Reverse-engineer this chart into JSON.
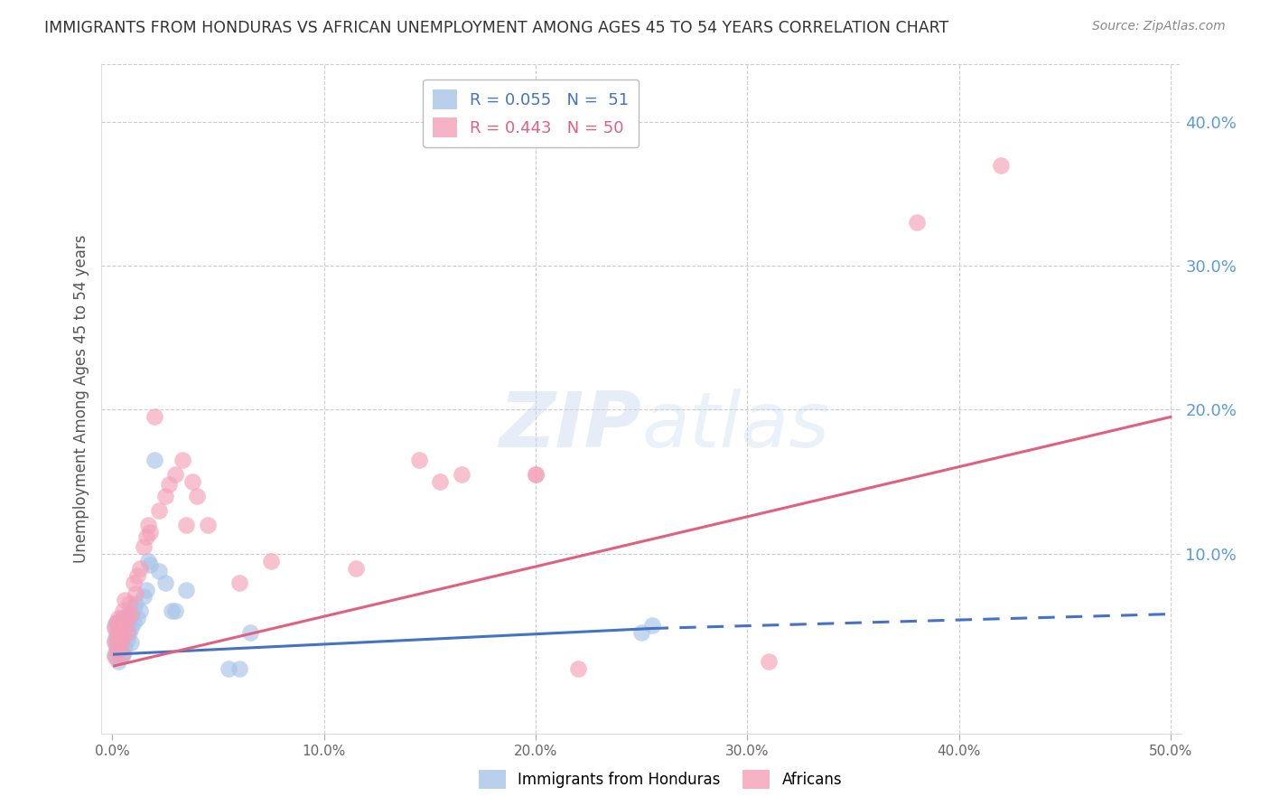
{
  "title": "IMMIGRANTS FROM HONDURAS VS AFRICAN UNEMPLOYMENT AMONG AGES 45 TO 54 YEARS CORRELATION CHART",
  "source": "Source: ZipAtlas.com",
  "ylabel": "Unemployment Among Ages 45 to 54 years",
  "xlim": [
    -0.005,
    0.505
  ],
  "ylim": [
    -0.025,
    0.44
  ],
  "xticks": [
    0.0,
    0.1,
    0.2,
    0.3,
    0.4,
    0.5
  ],
  "yticks_right": [
    0.1,
    0.2,
    0.3,
    0.4
  ],
  "xtick_labels": [
    "0.0%",
    "10.0%",
    "20.0%",
    "30.0%",
    "40.0%",
    "50.0%"
  ],
  "ytick_labels_right": [
    "10.0%",
    "20.0%",
    "30.0%",
    "40.0%"
  ],
  "series1_name": "Immigrants from Honduras",
  "series1_color": "#a8c4e8",
  "series2_name": "Africans",
  "series2_color": "#f4a0b8",
  "trend1_color": "#4472c4",
  "trend2_color": "#e06080",
  "background_color": "#ffffff",
  "grid_color": "#cccccc",
  "title_color": "#333333",
  "axis_label_color": "#555555",
  "right_axis_color": "#5b9bd5",
  "legend_label1": "R = 0.055   N =  51",
  "legend_label2": "R = 0.443   N = 50",
  "legend_color1": "#4472c4",
  "legend_color2": "#e06080",
  "watermark_text": "ZIPatlas",
  "trend1_x_start": 0.001,
  "trend1_x_solid_end": 0.255,
  "trend1_x_end": 0.5,
  "trend1_y_start": 0.03,
  "trend1_y_solid_end": 0.048,
  "trend1_y_end": 0.058,
  "trend2_x_start": 0.001,
  "trend2_x_end": 0.5,
  "trend2_y_start": 0.022,
  "trend2_y_end": 0.195,
  "series1_x": [
    0.001,
    0.001,
    0.001,
    0.002,
    0.002,
    0.002,
    0.002,
    0.002,
    0.003,
    0.003,
    0.003,
    0.003,
    0.004,
    0.004,
    0.004,
    0.004,
    0.004,
    0.005,
    0.005,
    0.005,
    0.005,
    0.006,
    0.006,
    0.006,
    0.007,
    0.007,
    0.007,
    0.008,
    0.008,
    0.009,
    0.009,
    0.01,
    0.01,
    0.011,
    0.012,
    0.013,
    0.015,
    0.016,
    0.017,
    0.018,
    0.02,
    0.022,
    0.025,
    0.028,
    0.03,
    0.035,
    0.055,
    0.06,
    0.065,
    0.25,
    0.255
  ],
  "series1_y": [
    0.03,
    0.04,
    0.05,
    0.035,
    0.045,
    0.052,
    0.028,
    0.038,
    0.032,
    0.042,
    0.048,
    0.025,
    0.036,
    0.044,
    0.05,
    0.028,
    0.038,
    0.03,
    0.042,
    0.048,
    0.055,
    0.035,
    0.045,
    0.052,
    0.04,
    0.05,
    0.058,
    0.045,
    0.055,
    0.038,
    0.048,
    0.062,
    0.052,
    0.065,
    0.055,
    0.06,
    0.07,
    0.075,
    0.095,
    0.092,
    0.165,
    0.088,
    0.08,
    0.06,
    0.06,
    0.075,
    0.02,
    0.02,
    0.045,
    0.045,
    0.05
  ],
  "series2_x": [
    0.001,
    0.001,
    0.001,
    0.002,
    0.002,
    0.002,
    0.003,
    0.003,
    0.003,
    0.004,
    0.004,
    0.005,
    0.005,
    0.005,
    0.006,
    0.006,
    0.007,
    0.007,
    0.008,
    0.009,
    0.01,
    0.011,
    0.012,
    0.013,
    0.015,
    0.016,
    0.017,
    0.018,
    0.02,
    0.022,
    0.025,
    0.027,
    0.03,
    0.033,
    0.035,
    0.038,
    0.04,
    0.045,
    0.06,
    0.075,
    0.115,
    0.145,
    0.165,
    0.2,
    0.22,
    0.31,
    0.38,
    0.42,
    0.2,
    0.155
  ],
  "series2_y": [
    0.028,
    0.038,
    0.048,
    0.032,
    0.042,
    0.052,
    0.035,
    0.045,
    0.055,
    0.038,
    0.048,
    0.03,
    0.042,
    0.06,
    0.05,
    0.068,
    0.045,
    0.055,
    0.065,
    0.058,
    0.08,
    0.072,
    0.085,
    0.09,
    0.105,
    0.112,
    0.12,
    0.115,
    0.195,
    0.13,
    0.14,
    0.148,
    0.155,
    0.165,
    0.12,
    0.15,
    0.14,
    0.12,
    0.08,
    0.095,
    0.09,
    0.165,
    0.155,
    0.155,
    0.02,
    0.025,
    0.33,
    0.37,
    0.155,
    0.15
  ]
}
